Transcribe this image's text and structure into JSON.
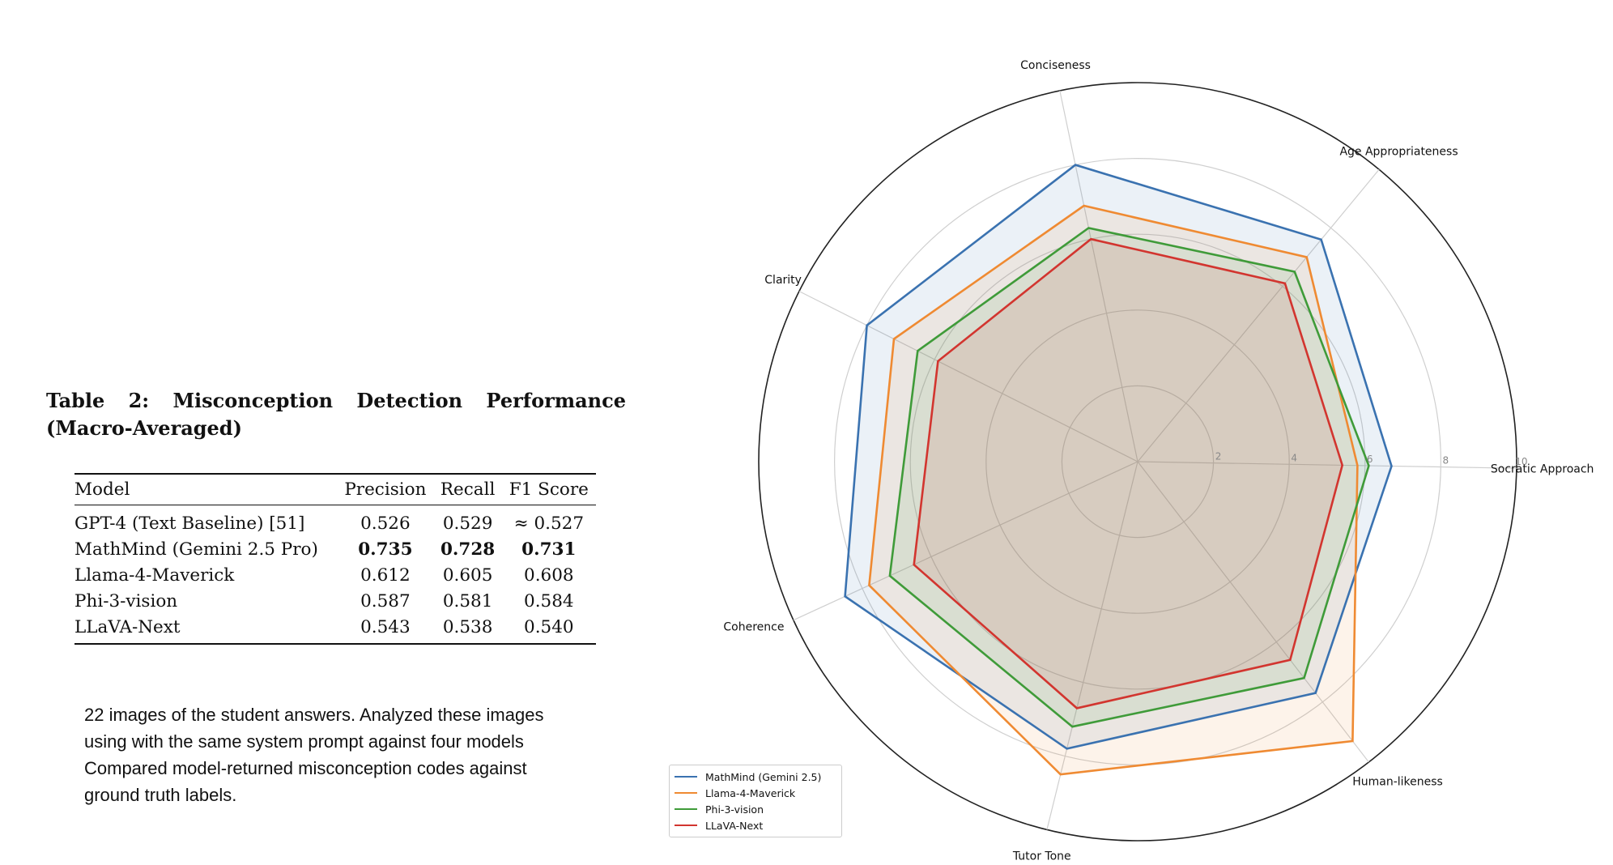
{
  "table": {
    "title": "Table 2: Misconception Detection Performance (Macro-Averaged)",
    "columns": [
      "Model",
      "Precision",
      "Recall",
      "F1 Score"
    ],
    "rows": [
      {
        "model": "GPT-4 (Text Baseline) [51]",
        "precision": "0.526",
        "recall": "0.529",
        "f1": "≈ 0.527"
      },
      {
        "model": "MathMind (Gemini 2.5 Pro)",
        "precision": "0.735",
        "recall": "0.728",
        "f1": "0.731"
      },
      {
        "model": "Llama-4-Maverick",
        "precision": "0.612",
        "recall": "0.605",
        "f1": "0.608"
      },
      {
        "model": "Phi-3-vision",
        "precision": "0.587",
        "recall": "0.581",
        "f1": "0.584"
      },
      {
        "model": "LLaVA-Next",
        "precision": "0.543",
        "recall": "0.538",
        "f1": "0.540"
      }
    ]
  },
  "description": "22 images of the student answers. Analyzed these images using with the same system prompt against four models Compared model-returned misconception codes against ground truth labels.",
  "chart_data": {
    "type": "radar",
    "categories": [
      "Socratic Approach",
      "Age Appropriateness",
      "Conciseness",
      "Clarity",
      "Coherence",
      "Tutor Tone",
      "Human-likeness"
    ],
    "rlim": [
      0,
      10
    ],
    "rticks": [
      "2",
      "4",
      "6",
      "8",
      "10"
    ],
    "series": [
      {
        "name": "MathMind (Gemini 2.5)",
        "color": "#3a72b0",
        "values": [
          6.7,
          7.6,
          8.0,
          8.0,
          8.5,
          7.8,
          7.7
        ]
      },
      {
        "name": "Llama-4-Maverick",
        "color": "#ef8a32",
        "values": [
          5.8,
          7.0,
          6.9,
          7.2,
          7.8,
          8.5,
          9.3
        ]
      },
      {
        "name": "Phi-3-vision",
        "color": "#3f9b39",
        "values": [
          6.1,
          6.5,
          6.3,
          6.5,
          7.2,
          7.2,
          7.2
        ]
      },
      {
        "name": "LLaVA-Next",
        "color": "#d2352f",
        "values": [
          5.4,
          6.1,
          6.0,
          5.9,
          6.5,
          6.7,
          6.6
        ]
      }
    ],
    "legend_position": "lower-left",
    "grid": true
  }
}
